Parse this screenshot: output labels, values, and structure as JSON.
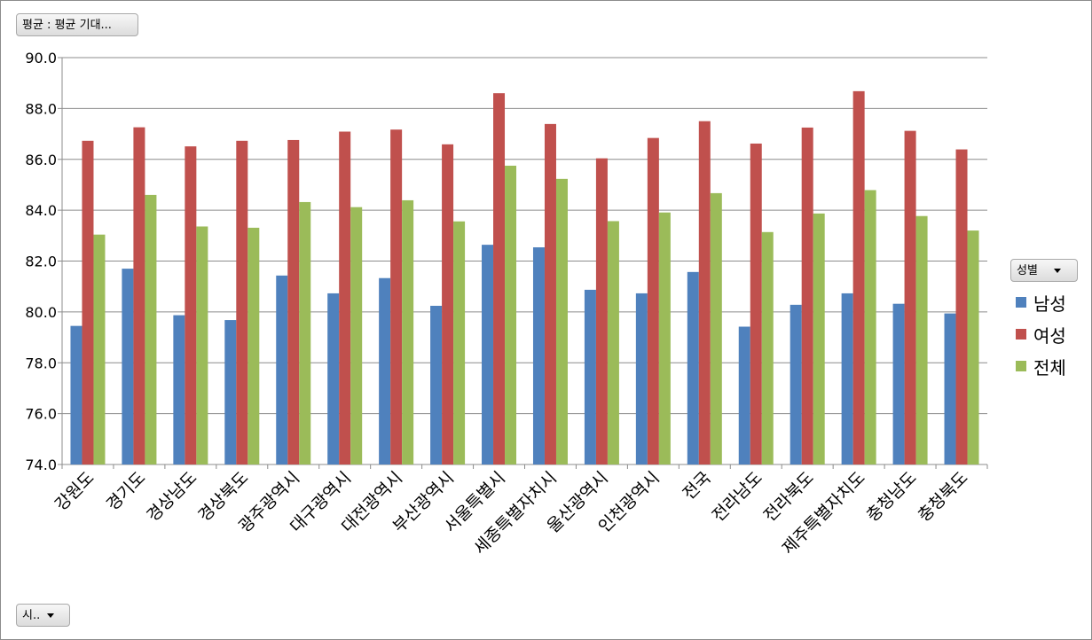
{
  "filters": {
    "value_field": "평균 : 평균 기대...",
    "axis_field": "시..",
    "legend_field": "성별"
  },
  "chart_data": {
    "type": "bar",
    "categories": [
      "강원도",
      "경기도",
      "경상남도",
      "경상북도",
      "광주광역시",
      "대구광역시",
      "대전광역시",
      "부산광역시",
      "서울특별시",
      "세종특별자치시",
      "울산광역시",
      "인천광역시",
      "전국",
      "전라남도",
      "전라북도",
      "제주특별자치도",
      "충청남도",
      "충청북도"
    ],
    "series": [
      {
        "name": "남성",
        "color": "#4f81bd",
        "values": [
          79.45,
          81.7,
          79.87,
          79.68,
          81.43,
          80.73,
          81.33,
          80.24,
          82.64,
          82.54,
          80.87,
          80.73,
          81.57,
          79.42,
          80.28,
          80.73,
          80.32,
          79.94
        ]
      },
      {
        "name": "여성",
        "color": "#c0504d",
        "values": [
          86.73,
          87.26,
          86.51,
          86.73,
          86.76,
          87.09,
          87.17,
          86.59,
          88.6,
          87.39,
          86.04,
          86.84,
          87.5,
          86.62,
          87.25,
          88.68,
          87.12,
          86.39
        ]
      },
      {
        "name": "전체",
        "color": "#9bbb59",
        "values": [
          83.04,
          84.6,
          83.36,
          83.31,
          84.32,
          84.12,
          84.39,
          83.56,
          85.75,
          85.23,
          83.57,
          83.91,
          84.67,
          83.14,
          83.87,
          84.79,
          83.77,
          83.2
        ]
      }
    ],
    "ylim": [
      74.0,
      90.0
    ],
    "yticks": [
      "74.0",
      "76.0",
      "78.0",
      "80.0",
      "82.0",
      "84.0",
      "86.0",
      "88.0",
      "90.0"
    ],
    "grid": true,
    "legend_position": "right"
  }
}
